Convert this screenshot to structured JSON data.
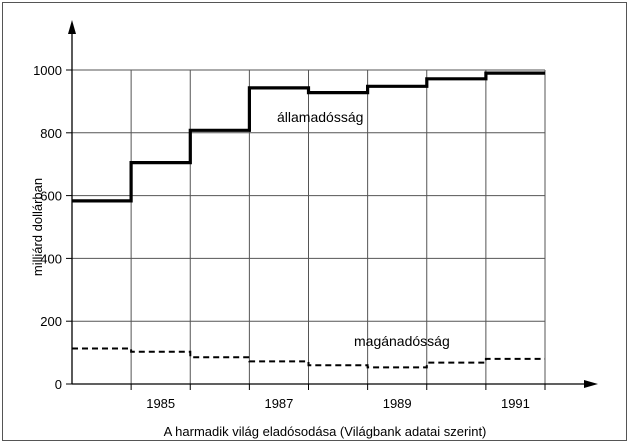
{
  "chart_data": {
    "type": "line",
    "step": true,
    "title": "",
    "caption": "A harmadik világ eladósodása (Világbank adatai szerint)",
    "xlabel": "",
    "ylabel": "milliárd dollárban",
    "xlim": [
      1984,
      1992
    ],
    "ylim": [
      0,
      1000
    ],
    "grid": true,
    "xticks": [
      1985,
      1987,
      1989,
      1991
    ],
    "yticks": [
      0,
      200,
      400,
      600,
      800,
      1000
    ],
    "x_periods": [
      1984,
      1985,
      1986,
      1987,
      1988,
      1989,
      1990,
      1991
    ],
    "series": [
      {
        "name": "államadósság",
        "style": "solid",
        "color": "#000000",
        "values": [
          583,
          705,
          808,
          943,
          928,
          948,
          972,
          990
        ]
      },
      {
        "name": "magánadósság",
        "style": "dashed",
        "color": "#000000",
        "values": [
          113,
          103,
          85,
          72,
          60,
          53,
          68,
          80
        ]
      }
    ]
  }
}
